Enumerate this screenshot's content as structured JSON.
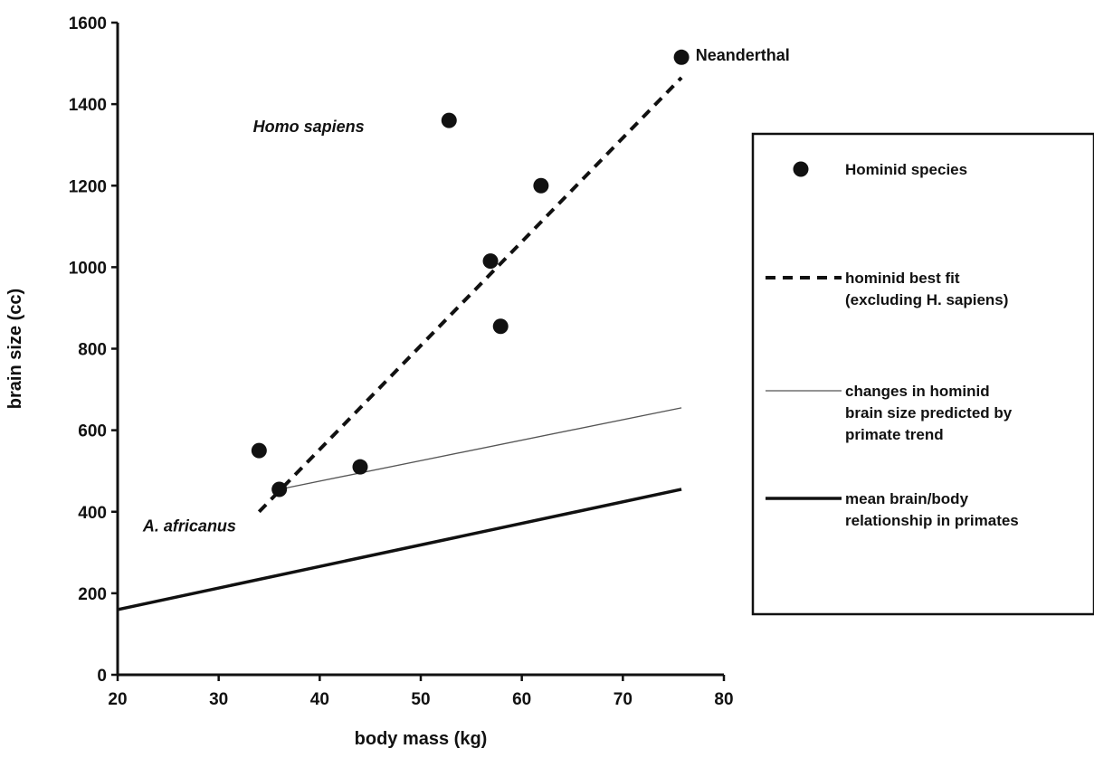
{
  "chart_data": {
    "type": "scatter",
    "xlabel": "body mass (kg)",
    "ylabel": "brain size (cc)",
    "xlim": [
      20,
      80
    ],
    "ylim": [
      0,
      1600
    ],
    "xticks": [
      "20",
      "30",
      "40",
      "50",
      "60",
      "70",
      "80"
    ],
    "yticks": [
      "0",
      "200",
      "400",
      "600",
      "800",
      "1000",
      "1200",
      "1400",
      "1600"
    ],
    "grid": false,
    "legend_position": "right",
    "series": [
      {
        "name": "Hominid species",
        "kind": "scatter",
        "points": [
          {
            "x": 34,
            "y": 550
          },
          {
            "x": 36,
            "y": 455
          },
          {
            "x": 44,
            "y": 510
          },
          {
            "x": 52.8,
            "y": 1360
          },
          {
            "x": 56.9,
            "y": 1015
          },
          {
            "x": 57.9,
            "y": 855
          },
          {
            "x": 61.9,
            "y": 1200
          },
          {
            "x": 75.8,
            "y": 1515
          }
        ]
      },
      {
        "name": "hominid best fit (excluding H. sapiens)",
        "kind": "line",
        "style": "dashed",
        "points": [
          {
            "x": 34,
            "y": 400
          },
          {
            "x": 75.8,
            "y": 1465
          }
        ]
      },
      {
        "name": "changes in hominid brain size predicted by primate trend",
        "kind": "line",
        "style": "thin",
        "points": [
          {
            "x": 36,
            "y": 455
          },
          {
            "x": 75.8,
            "y": 655
          }
        ]
      },
      {
        "name": "mean brain/body relationship in primates",
        "kind": "line",
        "style": "thick",
        "points": [
          {
            "x": 20,
            "y": 160
          },
          {
            "x": 75.8,
            "y": 455
          }
        ]
      }
    ],
    "annotations": [
      {
        "text": "Neanderthal",
        "x": 77.2,
        "y": 1520,
        "italic": false
      },
      {
        "text": "Homo sapiens",
        "x": 33.4,
        "y": 1345,
        "italic": true
      },
      {
        "text": "A. africanus",
        "x": 22.5,
        "y": 365,
        "italic": true
      }
    ],
    "legend": [
      {
        "marker": "dot",
        "label_lines": [
          "Hominid species"
        ]
      },
      {
        "marker": "dashed",
        "label_lines": [
          "hominid best fit",
          "(excluding H. sapiens)"
        ]
      },
      {
        "marker": "thin",
        "label_lines": [
          "changes in hominid",
          "brain size predicted by",
          "primate trend"
        ]
      },
      {
        "marker": "thick",
        "label_lines": [
          "mean brain/body",
          "relationship in primates"
        ]
      }
    ]
  }
}
